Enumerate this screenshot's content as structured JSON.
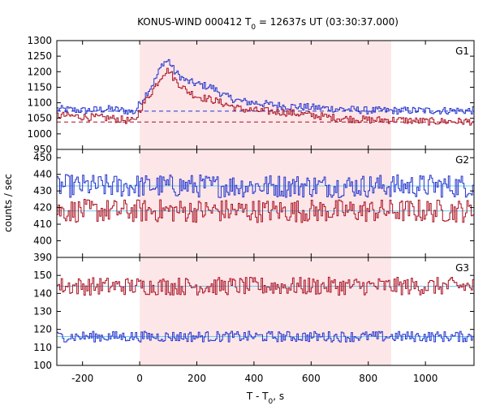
{
  "chart_data": {
    "type": "line",
    "title": "KONUS-WIND 000412 T",
    "title_sub": "0",
    "title_rest": " = 12637s UT (03:30:37.000)",
    "xlabel": "T - T",
    "xlabel_sub": "0",
    "xlabel_rest": ", s",
    "ylabel": "counts / sec",
    "xlim": [
      -290,
      1170
    ],
    "xticks": [
      -200,
      0,
      200,
      400,
      600,
      800,
      1000
    ],
    "highlight_interval": [
      0,
      880
    ],
    "colors": {
      "blue": "#2233cc",
      "red": "#aa1122",
      "fit": "#66ccee",
      "shade": "#fde6e8"
    },
    "panels": [
      {
        "name": "G1",
        "ylim": [
          950,
          1300
        ],
        "yticks": [
          950,
          1000,
          1050,
          1100,
          1150,
          1200,
          1250,
          1300
        ],
        "series": [
          {
            "color": "blue",
            "x": [
              -290,
              -200,
              -100,
              -20,
              0,
              50,
              80,
              100,
              120,
              160,
              200,
              250,
              300,
              350,
              400,
              500,
              600,
              700,
              800,
              900,
              1000,
              1100,
              1170
            ],
            "y": [
              1080,
              1075,
              1080,
              1070,
              1100,
              1170,
              1230,
              1235,
              1200,
              1170,
              1160,
              1150,
              1120,
              1105,
              1100,
              1090,
              1085,
              1080,
              1075,
              1075,
              1075,
              1075,
              1075
            ]
          },
          {
            "color": "red",
            "x": [
              -290,
              -200,
              -100,
              -20,
              0,
              50,
              80,
              100,
              120,
              160,
              200,
              250,
              300,
              350,
              400,
              500,
              600,
              700,
              800,
              900,
              1000,
              1100,
              1170
            ],
            "y": [
              1060,
              1055,
              1050,
              1040,
              1080,
              1150,
              1195,
              1205,
              1175,
              1140,
              1120,
              1110,
              1095,
              1080,
              1075,
              1070,
              1060,
              1050,
              1045,
              1045,
              1040,
              1040,
              1040
            ]
          }
        ],
        "backgrounds": [
          {
            "color": "blue",
            "value": 1073
          },
          {
            "color": "red",
            "value": 1038
          }
        ]
      },
      {
        "name": "G2",
        "ylim": [
          390,
          455
        ],
        "yticks": [
          390,
          400,
          410,
          420,
          430,
          440,
          450
        ],
        "series": [
          {
            "color": "blue",
            "x": [
              -290,
              1170
            ],
            "y": [
              433,
              433
            ],
            "noise": 7
          },
          {
            "color": "red",
            "x": [
              -290,
              1170
            ],
            "y": [
              418,
              418
            ],
            "noise": 7
          }
        ],
        "backgrounds": [
          {
            "color": "fit",
            "value": 433
          },
          {
            "color": "fit",
            "value": 418
          }
        ]
      },
      {
        "name": "G3",
        "ylim": [
          100,
          160
        ],
        "yticks": [
          100,
          110,
          120,
          130,
          140,
          150
        ],
        "series": [
          {
            "color": "red",
            "x": [
              -290,
              1170
            ],
            "y": [
              144,
              144
            ],
            "noise": 5
          },
          {
            "color": "blue",
            "x": [
              -290,
              1170
            ],
            "y": [
              116,
              116
            ],
            "noise": 3
          }
        ],
        "backgrounds": [
          {
            "color": "fit",
            "value": 144
          },
          {
            "color": "fit",
            "value": 116
          }
        ]
      }
    ]
  }
}
